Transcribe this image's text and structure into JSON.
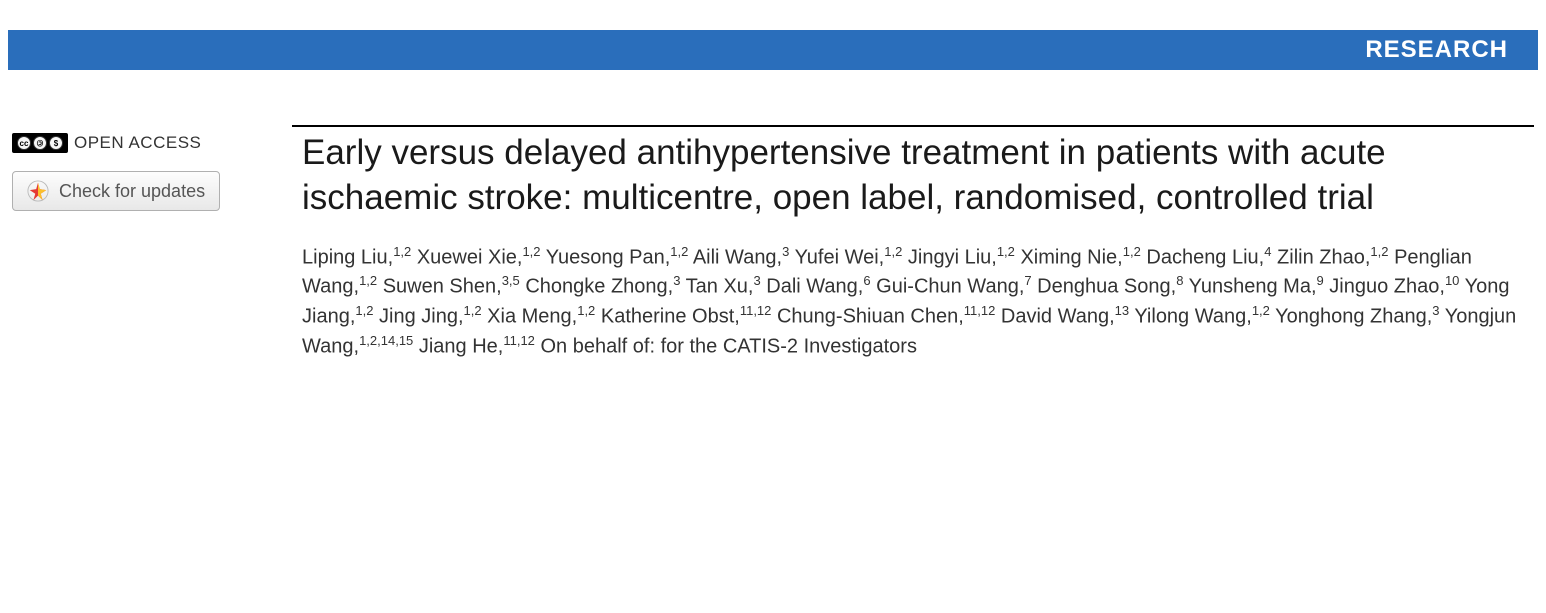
{
  "banner": {
    "label": "RESEARCH",
    "background_color": "#2a6ebb",
    "text_color": "#ffffff"
  },
  "left": {
    "cc_icons": [
      "CC",
      "①",
      "$"
    ],
    "open_access_label": "OPEN ACCESS",
    "updates_button_label": "Check for updates"
  },
  "article": {
    "title": "Early versus delayed antihypertensive treatment in patients with acute ischaemic stroke: multicentre, open label, randomised, controlled trial",
    "authors": [
      {
        "name": "Liping Liu",
        "aff": "1,2"
      },
      {
        "name": "Xuewei Xie",
        "aff": "1,2"
      },
      {
        "name": "Yuesong Pan",
        "aff": "1,2"
      },
      {
        "name": "Aili Wang",
        "aff": "3"
      },
      {
        "name": "Yufei Wei",
        "aff": "1,2"
      },
      {
        "name": "Jingyi Liu",
        "aff": "1,2"
      },
      {
        "name": "Ximing Nie",
        "aff": "1,2"
      },
      {
        "name": "Dacheng Liu",
        "aff": "4"
      },
      {
        "name": "Zilin Zhao",
        "aff": "1,2"
      },
      {
        "name": "Penglian Wang",
        "aff": "1,2"
      },
      {
        "name": "Suwen Shen",
        "aff": "3,5"
      },
      {
        "name": "Chongke Zhong",
        "aff": "3"
      },
      {
        "name": "Tan Xu",
        "aff": "3"
      },
      {
        "name": "Dali Wang",
        "aff": "6"
      },
      {
        "name": "Gui-Chun Wang",
        "aff": "7"
      },
      {
        "name": "Denghua Song",
        "aff": "8"
      },
      {
        "name": "Yunsheng Ma",
        "aff": "9"
      },
      {
        "name": "Jinguo Zhao",
        "aff": "10"
      },
      {
        "name": "Yong Jiang",
        "aff": "1,2"
      },
      {
        "name": "Jing Jing",
        "aff": "1,2"
      },
      {
        "name": "Xia Meng",
        "aff": "1,2"
      },
      {
        "name": "Katherine Obst",
        "aff": "11,12"
      },
      {
        "name": "Chung-Shiuan Chen",
        "aff": "11,12"
      },
      {
        "name": "David Wang",
        "aff": "13"
      },
      {
        "name": "Yilong Wang",
        "aff": "1,2"
      },
      {
        "name": "Yonghong Zhang",
        "aff": "3"
      },
      {
        "name": "Yongjun Wang",
        "aff": "1,2,14,15"
      },
      {
        "name": "Jiang He",
        "aff": "11,12"
      }
    ],
    "on_behalf": "On behalf of: for the CATIS-2 Investigators"
  },
  "style": {
    "page_bg": "#ffffff",
    "title_fontsize": 35,
    "author_fontsize": 20,
    "banner_fontsize": 24
  }
}
